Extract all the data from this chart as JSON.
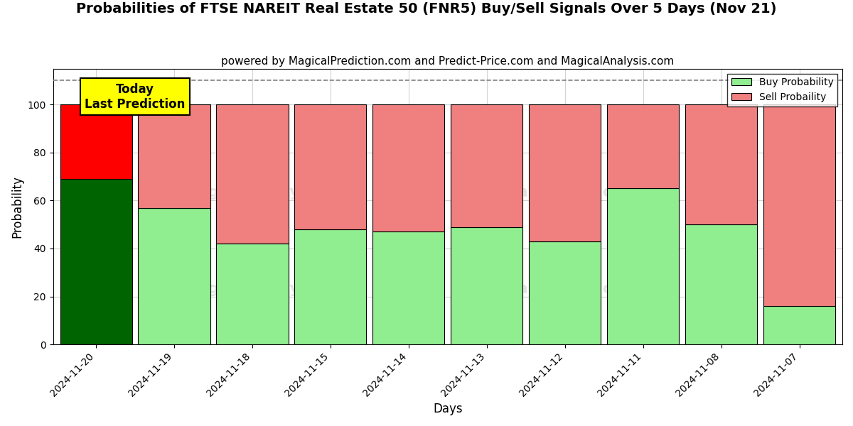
{
  "title": "Probabilities of FTSE NAREIT Real Estate 50 (FNR5) Buy/Sell Signals Over 5 Days (Nov 21)",
  "subtitle": "powered by MagicalPrediction.com and Predict-Price.com and MagicalAnalysis.com",
  "xlabel": "Days",
  "ylabel": "Probability",
  "categories": [
    "2024-11-20",
    "2024-11-19",
    "2024-11-18",
    "2024-11-15",
    "2024-11-14",
    "2024-11-13",
    "2024-11-12",
    "2024-11-11",
    "2024-11-08",
    "2024-11-07"
  ],
  "buy_values": [
    69,
    57,
    42,
    48,
    47,
    49,
    43,
    65,
    50,
    16
  ],
  "sell_values": [
    31,
    43,
    58,
    52,
    53,
    51,
    57,
    35,
    50,
    84
  ],
  "buy_color_today": "#006400",
  "sell_color_today": "#FF0000",
  "buy_color_normal": "#90EE90",
  "sell_color_normal": "#F08080",
  "today_label": "Today\nLast Prediction",
  "today_label_bg": "#FFFF00",
  "legend_buy": "Buy Probability",
  "legend_sell": "Sell Probaility",
  "dashed_line_y": 110,
  "ylim": [
    0,
    115
  ],
  "yticks": [
    0,
    20,
    40,
    60,
    80,
    100
  ],
  "bar_edge_color": "#000000",
  "bar_linewidth": 0.8,
  "title_fontsize": 14,
  "subtitle_fontsize": 11,
  "axis_label_fontsize": 12,
  "tick_fontsize": 10,
  "bar_width": 0.92
}
